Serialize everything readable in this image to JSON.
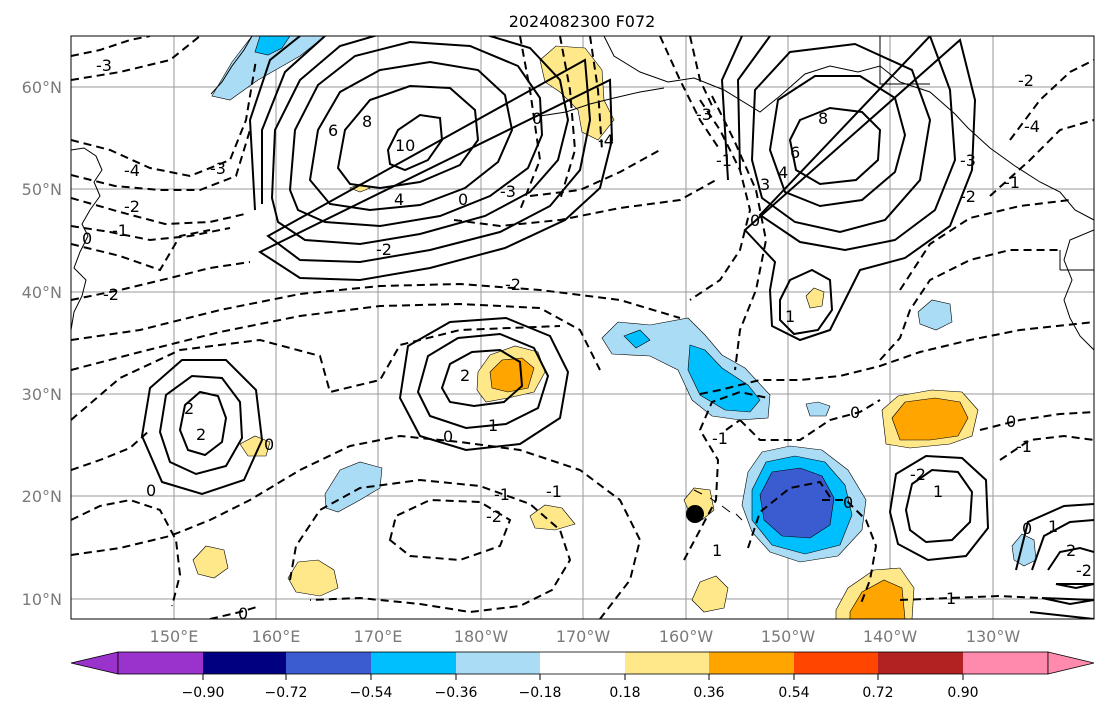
{
  "title": "2024082300 F072",
  "lat_labels": [
    "60°N",
    "50°N",
    "40°N",
    "30°N",
    "20°N",
    "10°N"
  ],
  "lon_labels": [
    "150°E",
    "160°E",
    "170°E",
    "180°W",
    "170°W",
    "160°W",
    "150°W",
    "140°W",
    "130°W"
  ],
  "colorbar": {
    "tick_labels": [
      "−0.90",
      "−0.72",
      "−0.54",
      "−0.36",
      "−0.18",
      "0.18",
      "0.36",
      "0.54",
      "0.72",
      "0.90"
    ],
    "colors": [
      "#9933cc",
      "#000080",
      "#3a5cd0",
      "#00bfff",
      "#aadcf5",
      "#ffffff",
      "#ffe88a",
      "#ffa500",
      "#ff4500",
      "#b22222",
      "#ff8aad"
    ]
  },
  "contour_labels": {
    "hi_w_10": "10",
    "hi_w_8": "8",
    "hi_w_6": "6",
    "hi_w_4": "4",
    "hi_e_8": "8",
    "hi_e_6": "6",
    "hi_e_4": "4",
    "hi_e_3": "3",
    "c_w_2a": "2",
    "c_w_2b": "2",
    "c_m_2": "2",
    "c_m_1": "1",
    "c_m_0": "0",
    "c_e_1": "1",
    "c_se_1": "1",
    "c_fe_1": "1",
    "c_fe_2": "2",
    "c_fe_0": "0",
    "d_nw_3": "-3",
    "d_w_4": "-4",
    "d_w_3": "-3",
    "d_w_2": "-2",
    "d_w_1": "-1",
    "d_w_0": "0",
    "d_sw_2": "-2",
    "d_mid_2": "-2",
    "d_mid_1": "-1",
    "d_mid_3": "-3",
    "d_mid_0": "0",
    "d_top_2": "-2",
    "d_top_3": "-3",
    "d_top_0": "0",
    "d_top_4": "-4",
    "d_c_1": "-1",
    "d_c_0": "0",
    "d_c_2": "-2",
    "d_c_1b": "-1",
    "d_s_0": "0",
    "d_s_2": "-2",
    "d_s_1": "-1",
    "d_e_0": "0",
    "d_e_0b": "0",
    "d_e_1": "-1",
    "d_e_2": "-2",
    "d_e_3": "-3",
    "d_e_4": "-4",
    "d_se_1": "-1",
    "d_se_0": "0",
    "d_bot_0": "0",
    "d_ne_2": "-2",
    "d_ne_1": "-1",
    "d_w2_0": "0",
    "d_w2_2": "-2"
  },
  "marker": "station-dot"
}
